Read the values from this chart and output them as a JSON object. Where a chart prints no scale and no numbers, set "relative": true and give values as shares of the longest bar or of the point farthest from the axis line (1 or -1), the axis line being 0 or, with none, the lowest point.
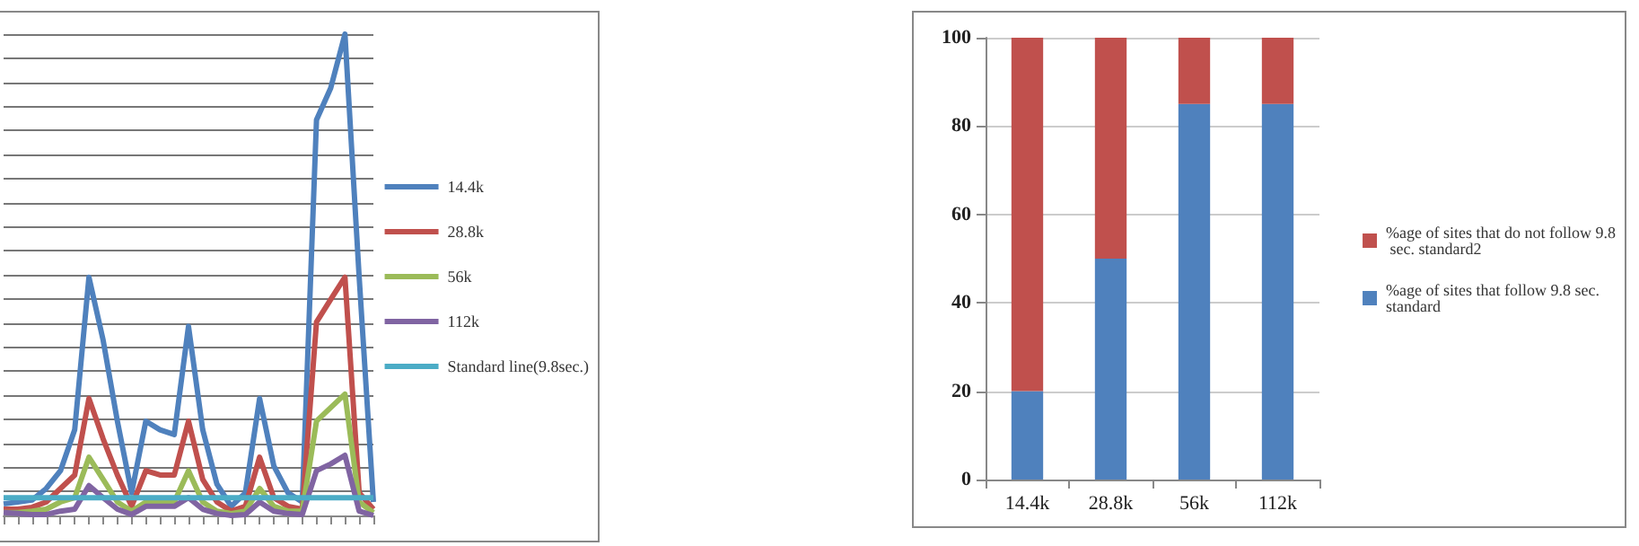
{
  "chart_data": [
    {
      "type": "line",
      "relative": true,
      "grid": "y",
      "legend": "right",
      "marker": "none",
      "categories": [
        null,
        null,
        null,
        null,
        null,
        null,
        null,
        null,
        null,
        null,
        null,
        null,
        null,
        null,
        null,
        null,
        null,
        null,
        null,
        null,
        null,
        null,
        null,
        null,
        null,
        null,
        null
      ],
      "series": [
        {
          "name": "14.4k",
          "color": "#4f81bd",
          "values": [
            0.024,
            0.028,
            0.032,
            0.056,
            0.093,
            0.178,
            0.495,
            0.364,
            0.196,
            0.047,
            0.196,
            0.178,
            0.168,
            0.393,
            0.178,
            0.065,
            0.019,
            0.047,
            0.243,
            0.103,
            0.047,
            0.028,
            0.822,
            0.888,
            1,
            0.495,
            0.028
          ]
        },
        {
          "name": "28.8k",
          "color": "#c0504d",
          "values": [
            0.013,
            0.013,
            0.017,
            0.028,
            0.056,
            0.084,
            0.243,
            0.159,
            0.084,
            0.019,
            0.093,
            0.084,
            0.084,
            0.196,
            0.075,
            0.028,
            0.009,
            0.019,
            0.121,
            0.037,
            0.019,
            0.013,
            0.402,
            0.449,
            0.495,
            0.047,
            0.013
          ]
        },
        {
          "name": "56k",
          "color": "#9bbb59",
          "values": [
            0.006,
            0.006,
            0.009,
            0.013,
            0.028,
            0.037,
            0.121,
            0.075,
            0.028,
            0.009,
            0.028,
            0.028,
            0.028,
            0.093,
            0.028,
            0.009,
            0.004,
            0.009,
            0.056,
            0.019,
            0.009,
            0.009,
            0.196,
            0.224,
            0.252,
            0.028,
            0.006
          ]
        },
        {
          "name": "112k",
          "color": "#8064a2",
          "values": [
            0.006,
            0.004,
            0.002,
            0.002,
            0.009,
            0.013,
            0.062,
            0.037,
            0.013,
            0.002,
            0.019,
            0.019,
            0.019,
            0.037,
            0.013,
            0.004,
            0,
            0.002,
            0.028,
            0.009,
            0.004,
            0.002,
            0.093,
            0.107,
            0.125,
            0.009,
            0
          ]
        },
        {
          "name": "Standard line(9.8sec.)",
          "color": "#4bacc6",
          "values": [
            0.037,
            0.037,
            0.037,
            0.037,
            0.037,
            0.037,
            0.037,
            0.037,
            0.037,
            0.037,
            0.037,
            0.037,
            0.037,
            0.037,
            0.037,
            0.037,
            0.037,
            0.037,
            0.037,
            0.037,
            0.037,
            0.037,
            0.037,
            0.037,
            0.037,
            0.037,
            0.037
          ]
        }
      ]
    },
    {
      "type": "bar",
      "stacked": true,
      "grid": "y",
      "legend": "right",
      "categories": [
        "14.4k",
        "28.8k",
        "56k",
        "112k"
      ],
      "ylim": [
        0,
        100
      ],
      "yticks": [
        0,
        20,
        40,
        60,
        80,
        100
      ],
      "series": [
        {
          "name": "%age of sites that follow 9.8 sec. standard",
          "color": "#4f81bd",
          "values": [
            20,
            50,
            85,
            85
          ]
        },
        {
          "name": "%age of sites that do not follow 9.8 sec. standard2",
          "color": "#c0504d",
          "values": [
            80,
            50,
            15,
            15
          ]
        }
      ]
    }
  ]
}
